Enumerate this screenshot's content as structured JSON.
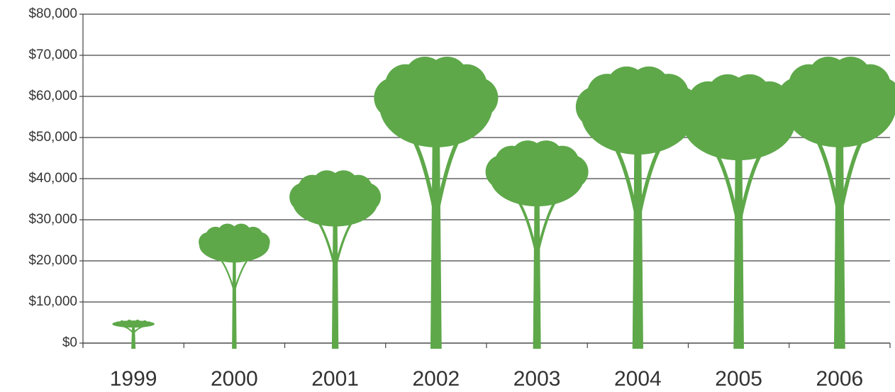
{
  "chart_data": {
    "type": "pictograph",
    "categories": [
      "1999",
      "2000",
      "2001",
      "2002",
      "2003",
      "2004",
      "2005",
      "2006"
    ],
    "values": [
      5500,
      28000,
      40500,
      68000,
      47500,
      65500,
      63500,
      68000
    ],
    "color": "#5ea84a",
    "ylim": [
      0,
      80000
    ],
    "yticks": [
      {
        "value": 0,
        "label": "$0"
      },
      {
        "value": 10000,
        "label": "$10,000"
      },
      {
        "value": 20000,
        "label": "$20,000"
      },
      {
        "value": 30000,
        "label": "$30,000"
      },
      {
        "value": 40000,
        "label": "$40,000"
      },
      {
        "value": 50000,
        "label": "$50,000"
      },
      {
        "value": 60000,
        "label": "$60,000"
      },
      {
        "value": 70000,
        "label": "$70,000"
      },
      {
        "value": 80000,
        "label": "$80,000"
      }
    ],
    "grid": true
  }
}
